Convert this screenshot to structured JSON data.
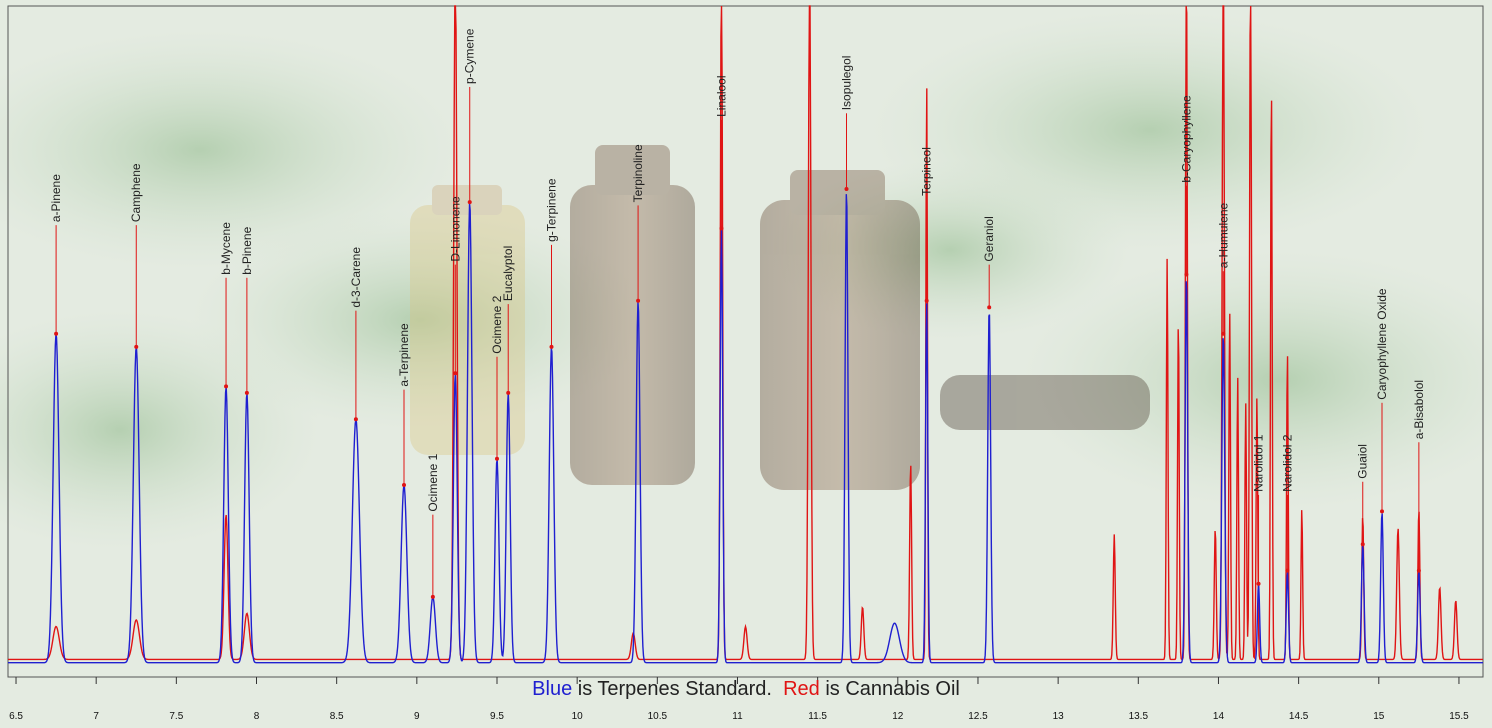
{
  "colors": {
    "standard": "#1f1fd0",
    "cannabis": "#e01414"
  },
  "caption": {
    "blue_word": "Blue",
    "blue_rest": " is Terpenes Standard.  ",
    "red_word": "Red",
    "red_rest": " is Cannabis Oil"
  },
  "chart_data": {
    "type": "line",
    "xlim": [
      6.45,
      15.65
    ],
    "ylim": [
      0,
      100
    ],
    "grid": false,
    "x_ticks": [
      6.5,
      7,
      7.5,
      8,
      8.5,
      9,
      9.5,
      10,
      10.5,
      11,
      11.5,
      12,
      12.5,
      13,
      13.5,
      14,
      14.5,
      15,
      15.5
    ],
    "x_tick_labels": [
      "6.5",
      "7",
      "7.5",
      "8",
      "8.5",
      "9",
      "9.5",
      "10",
      "10.5",
      "11",
      "11.5",
      "12",
      "12.5",
      "13",
      "13.5",
      "14",
      "14.5",
      "15",
      "15.5"
    ],
    "peak_labels": [
      {
        "text": "a-Pinene",
        "x": 6.75,
        "y": 67
      },
      {
        "text": "Camphene",
        "x": 7.25,
        "y": 67
      },
      {
        "text": "b-Mycene",
        "x": 7.81,
        "y": 59
      },
      {
        "text": "b-Pinene",
        "x": 7.94,
        "y": 59
      },
      {
        "text": "d-3-Carene",
        "x": 8.62,
        "y": 54
      },
      {
        "text": "a-Terpinene",
        "x": 8.92,
        "y": 42
      },
      {
        "text": "Ocimene 1",
        "x": 9.1,
        "y": 23
      },
      {
        "text": "D-Limonene",
        "x": 9.24,
        "y": 61
      },
      {
        "text": "p-Cymene",
        "x": 9.33,
        "y": 88
      },
      {
        "text": "Ocimene 2",
        "x": 9.5,
        "y": 47
      },
      {
        "text": "Eucalyptol",
        "x": 9.57,
        "y": 55
      },
      {
        "text": "g-Terpinene",
        "x": 9.84,
        "y": 64
      },
      {
        "text": "Terpinoline",
        "x": 10.38,
        "y": 70
      },
      {
        "text": "Linalool",
        "x": 10.9,
        "y": 83
      },
      {
        "text": "Isopulegol",
        "x": 11.68,
        "y": 84
      },
      {
        "text": "Terpineol",
        "x": 12.18,
        "y": 71
      },
      {
        "text": "Geraniol",
        "x": 12.57,
        "y": 61
      },
      {
        "text": "b-Caryophyllene",
        "x": 13.8,
        "y": 73
      },
      {
        "text": "a-Humulene",
        "x": 14.03,
        "y": 60
      },
      {
        "text": "Narolidol 1",
        "x": 14.25,
        "y": 26
      },
      {
        "text": "Narolidol 2",
        "x": 14.43,
        "y": 26
      },
      {
        "text": "Guaiol",
        "x": 14.9,
        "y": 28
      },
      {
        "text": "Caryophyllene Oxide",
        "x": 15.02,
        "y": 40
      },
      {
        "text": "a-Bisabolol",
        "x": 15.25,
        "y": 34
      }
    ],
    "series": [
      {
        "name": "Blue",
        "baseline": 0.5,
        "peaks": [
          {
            "x": 6.75,
            "h": 50,
            "w": 0.018
          },
          {
            "x": 7.25,
            "h": 48,
            "w": 0.018
          },
          {
            "x": 7.81,
            "h": 42,
            "w": 0.014
          },
          {
            "x": 7.94,
            "h": 41,
            "w": 0.014
          },
          {
            "x": 8.62,
            "h": 37,
            "w": 0.022
          },
          {
            "x": 8.92,
            "h": 27,
            "w": 0.018
          },
          {
            "x": 9.1,
            "h": 10,
            "w": 0.016
          },
          {
            "x": 9.24,
            "h": 44,
            "w": 0.012
          },
          {
            "x": 9.33,
            "h": 70,
            "w": 0.014
          },
          {
            "x": 9.5,
            "h": 31,
            "w": 0.012
          },
          {
            "x": 9.57,
            "h": 41,
            "w": 0.012
          },
          {
            "x": 9.84,
            "h": 48,
            "w": 0.014
          },
          {
            "x": 10.38,
            "h": 55,
            "w": 0.012
          },
          {
            "x": 10.9,
            "h": 66,
            "w": 0.008
          },
          {
            "x": 11.68,
            "h": 72,
            "w": 0.009
          },
          {
            "x": 11.98,
            "h": 6,
            "w": 0.03
          },
          {
            "x": 12.18,
            "h": 55,
            "w": 0.007
          },
          {
            "x": 12.57,
            "h": 54,
            "w": 0.009
          },
          {
            "x": 13.8,
            "h": 59,
            "w": 0.008
          },
          {
            "x": 14.03,
            "h": 50,
            "w": 0.009
          },
          {
            "x": 14.25,
            "h": 12,
            "w": 0.007
          },
          {
            "x": 14.43,
            "h": 14,
            "w": 0.007
          },
          {
            "x": 14.9,
            "h": 18,
            "w": 0.008
          },
          {
            "x": 15.02,
            "h": 23,
            "w": 0.008
          },
          {
            "x": 15.25,
            "h": 14,
            "w": 0.008
          }
        ]
      },
      {
        "name": "Red",
        "baseline": 1.0,
        "peaks": [
          {
            "x": 6.75,
            "h": 5,
            "w": 0.02
          },
          {
            "x": 7.25,
            "h": 6,
            "w": 0.02
          },
          {
            "x": 7.81,
            "h": 22,
            "w": 0.012
          },
          {
            "x": 7.94,
            "h": 7,
            "w": 0.016
          },
          {
            "x": 9.24,
            "h": 106,
            "w": 0.01
          },
          {
            "x": 10.35,
            "h": 4,
            "w": 0.012
          },
          {
            "x": 10.9,
            "h": 106,
            "w": 0.007
          },
          {
            "x": 11.05,
            "h": 5,
            "w": 0.01
          },
          {
            "x": 11.45,
            "h": 106,
            "w": 0.008
          },
          {
            "x": 11.78,
            "h": 8,
            "w": 0.008
          },
          {
            "x": 12.08,
            "h": 30,
            "w": 0.006
          },
          {
            "x": 12.18,
            "h": 88,
            "w": 0.005
          },
          {
            "x": 13.35,
            "h": 19,
            "w": 0.006
          },
          {
            "x": 13.68,
            "h": 61,
            "w": 0.005
          },
          {
            "x": 13.75,
            "h": 52,
            "w": 0.005
          },
          {
            "x": 13.8,
            "h": 106,
            "w": 0.006
          },
          {
            "x": 13.98,
            "h": 20,
            "w": 0.006
          },
          {
            "x": 14.03,
            "h": 106,
            "w": 0.007
          },
          {
            "x": 14.07,
            "h": 53,
            "w": 0.005
          },
          {
            "x": 14.12,
            "h": 43,
            "w": 0.005
          },
          {
            "x": 14.17,
            "h": 39,
            "w": 0.005
          },
          {
            "x": 14.2,
            "h": 106,
            "w": 0.006
          },
          {
            "x": 14.24,
            "h": 40,
            "w": 0.005
          },
          {
            "x": 14.33,
            "h": 88,
            "w": 0.005
          },
          {
            "x": 14.43,
            "h": 47,
            "w": 0.005
          },
          {
            "x": 14.52,
            "h": 23,
            "w": 0.005
          },
          {
            "x": 14.9,
            "h": 22,
            "w": 0.006
          },
          {
            "x": 15.12,
            "h": 20,
            "w": 0.008
          },
          {
            "x": 15.25,
            "h": 23,
            "w": 0.006
          },
          {
            "x": 15.38,
            "h": 11,
            "w": 0.008
          },
          {
            "x": 15.48,
            "h": 9,
            "w": 0.008
          }
        ]
      }
    ]
  }
}
